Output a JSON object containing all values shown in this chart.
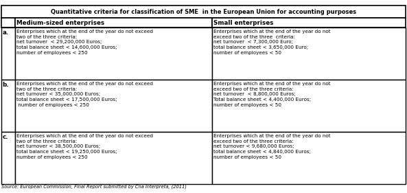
{
  "title": "Quantitative criteria for classification of SME  in the European Union for accounting purposes",
  "col_headers": [
    "Medium-sized enterprises",
    "Small enterprises"
  ],
  "row_labels": [
    "a.",
    "b.",
    "c."
  ],
  "medium_cells": [
    "Enterprises which at the end of the year do not exceed\ntwo of the three criteria:\nnet turnover  < 29,200,000 Euros;\ntotal balance sheet < 14,600,000 Euros;\nnumber of employees < 250",
    "Enterprises which at the end of the year do not exceed\ntwo of the three criteria:\nnet turnover < 35,000,000 Euros;\ntotal balance sheet < 17,500,000 Euros;\n number of employees < 250",
    "Enterprises which at the end of the year do not exceed\ntwo of the three criteria:\nnet turnover < 38,500,000 Euros;\ntotal balance sheet < 19,250,000 Euros;\nnumber of employees < 250"
  ],
  "small_cells": [
    "Enterprises which at the end of the year do not\nexceed two of the three  criteria:\nnet turnover  < 7,300,000 Euro;\ntotal balance sheet < 3,650,000 Euro;\nnumber of employees < 50",
    "Enterprises which at the end of the year do not\nexceed two of the three criteria:\nnet turnover  < 8,800,000 Euros;\nTotal balance sheet < 4,400,000 Euros;\nnumber of employees < 50",
    "Enterprises which at the end of the year do not\nexceed two of the three criteria:\nnet turnover < 9,680,000 Euros;\ntotal balance sheet < 4,840,000 Euros;\nnumber of employees < 50"
  ],
  "footer": "Source: European Commission, Final Report submitted by Cna Interpreta, (2011)",
  "fig_width": 5.93,
  "fig_height": 2.81,
  "dpi": 100
}
